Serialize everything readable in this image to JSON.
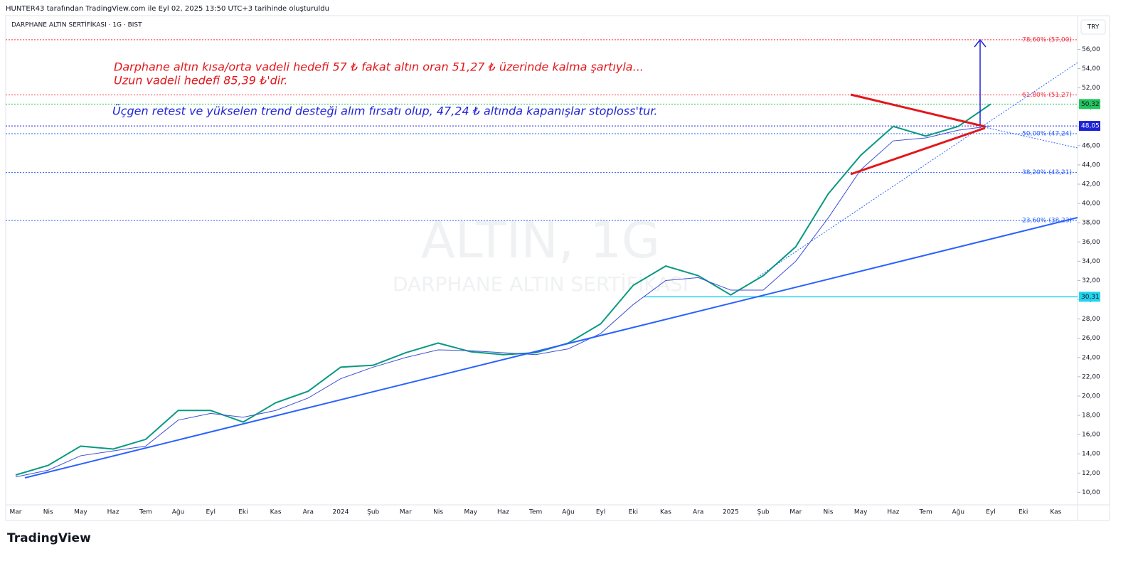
{
  "header": {
    "credit": "HUNTER43 tarafından TradingView.com ile Eyl 02, 2025 13:50 UTC+3 tarihinde oluşturuldu",
    "symbol": "DARPHANE ALTIN SERTİFİKASI · 1G · BIST",
    "currency": "TRY",
    "logo": "TradingView"
  },
  "watermark": {
    "title": "ALTIN, 1G",
    "subtitle": "DARPHANE ALTIN SERTİFİKASI"
  },
  "annotations": {
    "red": [
      "Darphane altın kısa/orta vadeli hedefi 57 ₺ fakat altın oran 51,27 ₺ üzerinde kalma şartıyla...",
      "Uzun vadeli hedefi 85,39 ₺'dir."
    ],
    "blue": "Üçgen retest ve yükselen trend desteği alım fırsatı olup, 47,24 ₺ altında kapanışlar stoploss'tur."
  },
  "chart_data": {
    "type": "line",
    "categories": [
      "Mar",
      "Nis",
      "May",
      "Haz",
      "Tem",
      "Ağu",
      "Eyl",
      "Eki",
      "Kas",
      "Ara",
      "2024",
      "Şub",
      "Mar",
      "Nis",
      "May",
      "Haz",
      "Tem",
      "Ağu",
      "Eyl",
      "Eki",
      "Kas",
      "Ara",
      "2025",
      "Şub",
      "Mar",
      "Nis",
      "May",
      "Haz",
      "Tem",
      "Ağu",
      "Eyl",
      "Eki",
      "Kas"
    ],
    "series": [
      {
        "color": "#089981",
        "values": [
          11.8,
          12.8,
          14.8,
          14.5,
          15.5,
          18.5,
          18.5,
          17.3,
          19.3,
          20.5,
          23,
          23.2,
          24.5,
          25.5,
          24.6,
          24.3,
          24.5,
          25.5,
          27.5,
          31.5,
          33.5,
          32.5,
          30.5,
          32.5,
          35.5,
          41,
          45,
          48,
          47,
          48,
          50.32,
          null,
          null
        ]
      },
      {
        "color": "#3f51d6",
        "values": [
          11.6,
          12.3,
          13.8,
          14.3,
          14.8,
          17.5,
          18.2,
          17.8,
          18.5,
          19.8,
          21.8,
          23,
          24,
          24.8,
          24.7,
          24.5,
          24.3,
          24.9,
          26.5,
          29.5,
          32,
          32.3,
          31,
          31,
          34,
          38.5,
          43.5,
          46.5,
          46.8,
          47.6,
          48.05,
          null,
          null
        ]
      }
    ],
    "ylim": [
      8.7,
      59.5
    ],
    "yticks": [
      {
        "value": 10,
        "label": "10,00"
      },
      {
        "value": 12,
        "label": "12,00"
      },
      {
        "value": 14,
        "label": "14,00"
      },
      {
        "value": 16,
        "label": "16,00"
      },
      {
        "value": 18,
        "label": "18,00"
      },
      {
        "value": 20,
        "label": "20,00"
      },
      {
        "value": 22,
        "label": "22,00"
      },
      {
        "value": 24,
        "label": "24,00"
      },
      {
        "value": 26,
        "label": "26,00"
      },
      {
        "value": 28,
        "label": "28,00"
      },
      {
        "value": 30,
        "label": "30,00"
      },
      {
        "value": 32,
        "label": "32,00"
      },
      {
        "value": 34,
        "label": "34,00"
      },
      {
        "value": 36,
        "label": "36,00"
      },
      {
        "value": 38,
        "label": "38,00"
      },
      {
        "value": 40,
        "label": "40,00"
      },
      {
        "value": 42,
        "label": "42,00"
      },
      {
        "value": 44,
        "label": "44,00"
      },
      {
        "value": 46,
        "label": "46,00"
      },
      {
        "value": 48,
        "label": "48,00"
      },
      {
        "value": 50,
        "label": "50,00"
      },
      {
        "value": 52,
        "label": "52,00"
      },
      {
        "value": 54,
        "label": "54,00"
      },
      {
        "value": 56,
        "label": "56,00"
      }
    ],
    "fib_levels": [
      {
        "value": 57,
        "label": "78,60% (57,00)",
        "color": "#f23645"
      },
      {
        "value": 51.27,
        "label": "61,80% (51,27)",
        "color": "#f23645"
      },
      {
        "value": 47.24,
        "label": "50,00% (47,24)",
        "color": "#2962ff"
      },
      {
        "value": 43.21,
        "label": "38,20% (43,21)",
        "color": "#2962ff"
      },
      {
        "value": 38.23,
        "label": "23,60% (38,23)",
        "color": "#2962ff"
      }
    ],
    "price_labels": [
      {
        "value": 50.32,
        "label": "50,32",
        "color": "#22c55e"
      },
      {
        "value": 48.05,
        "label": "48,05",
        "color": "#1d23d6"
      },
      {
        "value": 30.31,
        "label": "30,31",
        "color": "#22d3ee"
      }
    ]
  }
}
